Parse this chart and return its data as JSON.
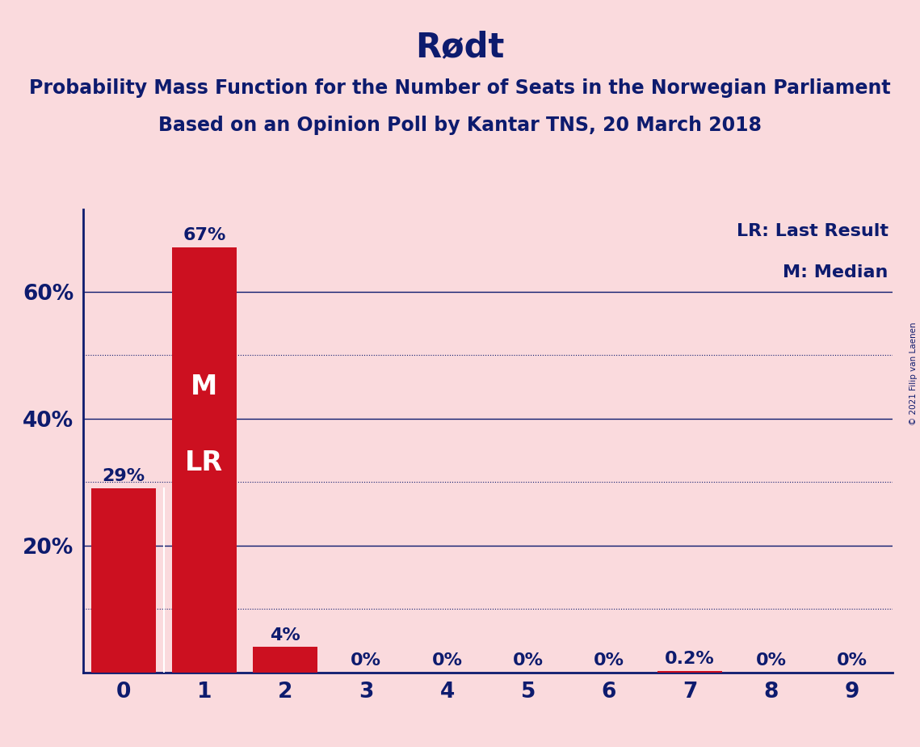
{
  "title": "Rødt",
  "subtitle_line1": "Probability Mass Function for the Number of Seats in the Norwegian Parliament",
  "subtitle_line2": "Based on an Opinion Poll by Kantar TNS, 20 March 2018",
  "copyright": "© 2021 Filip van Laenen",
  "categories": [
    0,
    1,
    2,
    3,
    4,
    5,
    6,
    7,
    8,
    9
  ],
  "values": [
    0.29,
    0.67,
    0.04,
    0.0,
    0.0,
    0.0,
    0.0,
    0.002,
    0.0,
    0.0
  ],
  "bar_labels": [
    "29%",
    "67%",
    "4%",
    "0%",
    "0%",
    "0%",
    "0%",
    "0.2%",
    "0%",
    "0%"
  ],
  "bar_color": "#CC1020",
  "background_color": "#FADADD",
  "text_color": "#0D1B6E",
  "median_bar": 1,
  "lr_bar": 1,
  "median_label": "M",
  "lr_label": "LR",
  "legend_lr": "LR: Last Result",
  "legend_m": "M: Median",
  "ylim": [
    0,
    0.73
  ],
  "yticks": [
    0.0,
    0.2,
    0.4,
    0.6
  ],
  "ytick_labels": [
    "",
    "20%",
    "40%",
    "60%"
  ],
  "dotted_lines": [
    0.1,
    0.3,
    0.5
  ],
  "solid_lines": [
    0.2,
    0.4,
    0.6
  ],
  "title_fontsize": 30,
  "subtitle_fontsize": 17,
  "bar_label_fontsize": 16,
  "axis_tick_fontsize": 19,
  "legend_fontsize": 16,
  "inside_label_fontsize": 24
}
